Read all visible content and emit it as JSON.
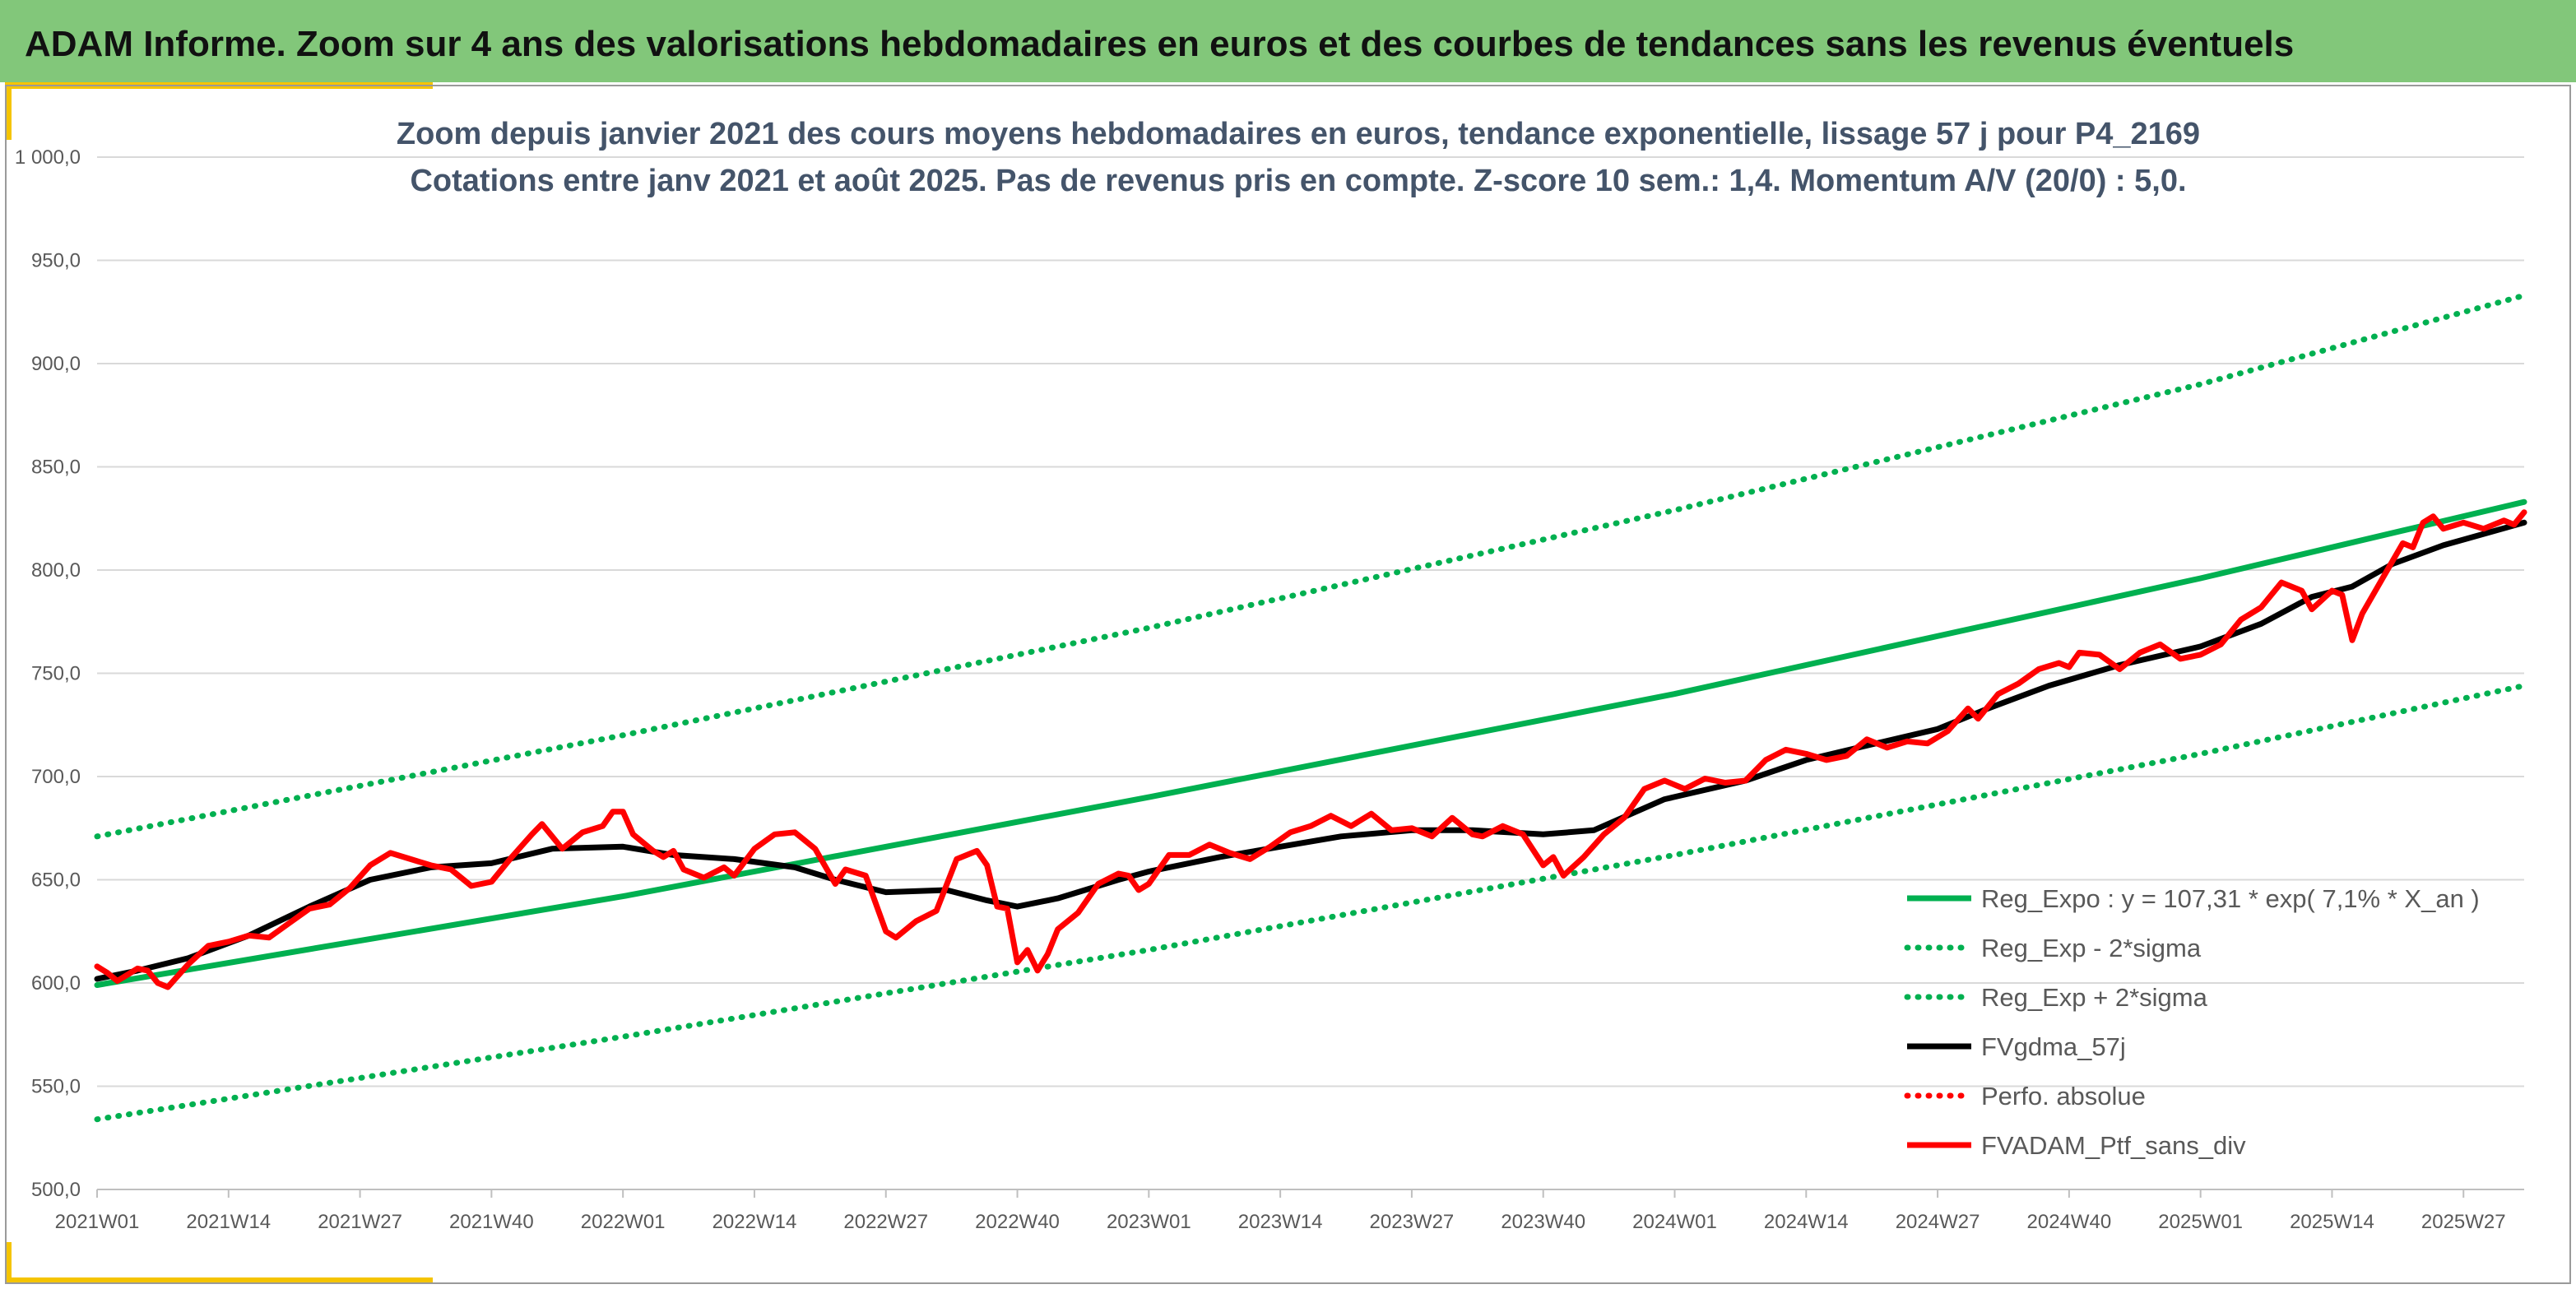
{
  "banner": {
    "title": "ADAM Informe. Zoom sur 4 ans des valorisations hebdomadaires en euros et des courbes de tendances sans les revenus éventuels"
  },
  "colors": {
    "banner_bg": "#82c77a",
    "accent": "#f5c400",
    "trend": "#00b050",
    "smooth": "#000000",
    "price": "#ff0000",
    "grid": "#d9d9d9"
  },
  "chart_data": {
    "type": "line",
    "title": "Zoom depuis janvier 2021 des cours moyens hebdomadaires en euros, tendance exponentielle, lissage 57 j pour P4_2169",
    "subtitle": "Cotations entre janv 2021 et août 2025. Pas de revenus pris en compte. Z-score 10 sem.: 1,4. Momentum A/V (20/0) : 5,0.",
    "xlabel": "",
    "ylabel": "",
    "ylim": [
      500,
      1000
    ],
    "yticks": [
      500,
      550,
      600,
      650,
      700,
      750,
      800,
      850,
      900,
      950,
      1000
    ],
    "ytick_labels": [
      "500,0",
      "550,0",
      "600,0",
      "650,0",
      "700,0",
      "750,0",
      "800,0",
      "850,0",
      "900,0",
      "950,0",
      "1 000,0"
    ],
    "x_range": [
      "2021W01",
      "2025W33"
    ],
    "xtick_labels": [
      "2021W01",
      "2021W14",
      "2021W27",
      "2021W40",
      "2022W01",
      "2022W14",
      "2022W27",
      "2022W40",
      "2023W01",
      "2023W14",
      "2023W27",
      "2023W40",
      "2024W01",
      "2024W14",
      "2024W27",
      "2024W40",
      "2025W01",
      "2025W14",
      "2025W27"
    ],
    "grid": true,
    "legend_position": "bottom-right",
    "series": [
      {
        "name": "Reg_Expo : y = 107,31 * exp( 7,1% *  X_an )",
        "style": "solid",
        "color": "#00b050",
        "points": [
          [
            "2021W01",
            599
          ],
          [
            "2022W01",
            642
          ],
          [
            "2023W01",
            690
          ],
          [
            "2024W01",
            740
          ],
          [
            "2025W01",
            796
          ],
          [
            "2025W33",
            833
          ]
        ]
      },
      {
        "name": "Reg_Exp - 2*sigma",
        "style": "dotted",
        "color": "#00b050",
        "points": [
          [
            "2021W01",
            534
          ],
          [
            "2022W01",
            574
          ],
          [
            "2023W01",
            616
          ],
          [
            "2024W01",
            662
          ],
          [
            "2025W01",
            711
          ],
          [
            "2025W33",
            744
          ]
        ]
      },
      {
        "name": "Reg_Exp + 2*sigma",
        "style": "dotted",
        "color": "#00b050",
        "points": [
          [
            "2021W01",
            671
          ],
          [
            "2022W01",
            720
          ],
          [
            "2023W01",
            772
          ],
          [
            "2024W01",
            829
          ],
          [
            "2025W01",
            890
          ],
          [
            "2025W33",
            933
          ]
        ]
      },
      {
        "name": "FVgdma_57j",
        "style": "solid",
        "color": "#000000",
        "points": [
          [
            "2021W01",
            602
          ],
          [
            "2021W05",
            606
          ],
          [
            "2021W10",
            612
          ],
          [
            "2021W16",
            623
          ],
          [
            "2021W22",
            637
          ],
          [
            "2021W28",
            650
          ],
          [
            "2021W34",
            656
          ],
          [
            "2021W40",
            658
          ],
          [
            "2021W46",
            665
          ],
          [
            "2022W01",
            666
          ],
          [
            "2022W06",
            662
          ],
          [
            "2022W12",
            660
          ],
          [
            "2022W18",
            656
          ],
          [
            "2022W22",
            650
          ],
          [
            "2022W27",
            644
          ],
          [
            "2022W33",
            645
          ],
          [
            "2022W37",
            640
          ],
          [
            "2022W40",
            637
          ],
          [
            "2022W44",
            641
          ],
          [
            "2022W50",
            650
          ],
          [
            "2023W01",
            654
          ],
          [
            "2023W08",
            661
          ],
          [
            "2023W14",
            666
          ],
          [
            "2023W20",
            671
          ],
          [
            "2023W27",
            674
          ],
          [
            "2023W33",
            674
          ],
          [
            "2023W40",
            672
          ],
          [
            "2023W45",
            674
          ],
          [
            "2023W52",
            689
          ],
          [
            "2024W08",
            698
          ],
          [
            "2024W14",
            708
          ],
          [
            "2024W20",
            715
          ],
          [
            "2024W27",
            723
          ],
          [
            "2024W32",
            733
          ],
          [
            "2024W38",
            744
          ],
          [
            "2024W45",
            754
          ],
          [
            "2025W01",
            763
          ],
          [
            "2025W07",
            774
          ],
          [
            "2025W12",
            787
          ],
          [
            "2025W16",
            792
          ],
          [
            "2025W20",
            803
          ],
          [
            "2025W25",
            812
          ],
          [
            "2025W33",
            823
          ]
        ]
      },
      {
        "name": "Perfo. absolue",
        "style": "dotted",
        "color": "#ff0000",
        "points": []
      },
      {
        "name": "FVADAM_Ptf_sans_div",
        "style": "solid",
        "color": "#ff0000",
        "points": [
          [
            "2021W01",
            608
          ],
          [
            "2021W02",
            605
          ],
          [
            "2021W03",
            601
          ],
          [
            "2021W04",
            604
          ],
          [
            "2021W05",
            607
          ],
          [
            "2021W06",
            606
          ],
          [
            "2021W07",
            600
          ],
          [
            "2021W08",
            598
          ],
          [
            "2021W10",
            609
          ],
          [
            "2021W12",
            618
          ],
          [
            "2021W14",
            620
          ],
          [
            "2021W16",
            623
          ],
          [
            "2021W18",
            622
          ],
          [
            "2021W20",
            629
          ],
          [
            "2021W22",
            636
          ],
          [
            "2021W24",
            638
          ],
          [
            "2021W26",
            646
          ],
          [
            "2021W28",
            657
          ],
          [
            "2021W30",
            663
          ],
          [
            "2021W32",
            660
          ],
          [
            "2021W34",
            657
          ],
          [
            "2021W36",
            655
          ],
          [
            "2021W38",
            647
          ],
          [
            "2021W40",
            649
          ],
          [
            "2021W42",
            661
          ],
          [
            "2021W44",
            672
          ],
          [
            "2021W45",
            677
          ],
          [
            "2021W47",
            665
          ],
          [
            "2021W49",
            673
          ],
          [
            "2021W51",
            676
          ],
          [
            "2021W52",
            683
          ],
          [
            "2022W01",
            683
          ],
          [
            "2022W02",
            672
          ],
          [
            "2022W04",
            664
          ],
          [
            "2022W05",
            661
          ],
          [
            "2022W06",
            664
          ],
          [
            "2022W07",
            655
          ],
          [
            "2022W09",
            651
          ],
          [
            "2022W11",
            656
          ],
          [
            "2022W12",
            652
          ],
          [
            "2022W14",
            665
          ],
          [
            "2022W16",
            672
          ],
          [
            "2022W18",
            673
          ],
          [
            "2022W20",
            665
          ],
          [
            "2022W22",
            648
          ],
          [
            "2022W23",
            655
          ],
          [
            "2022W25",
            652
          ],
          [
            "2022W27",
            625
          ],
          [
            "2022W28",
            622
          ],
          [
            "2022W30",
            630
          ],
          [
            "2022W32",
            635
          ],
          [
            "2022W34",
            660
          ],
          [
            "2022W36",
            664
          ],
          [
            "2022W37",
            657
          ],
          [
            "2022W38",
            637
          ],
          [
            "2022W39",
            636
          ],
          [
            "2022W40",
            610
          ],
          [
            "2022W41",
            616
          ],
          [
            "2022W42",
            606
          ],
          [
            "2022W43",
            614
          ],
          [
            "2022W44",
            626
          ],
          [
            "2022W46",
            634
          ],
          [
            "2022W48",
            648
          ],
          [
            "2022W50",
            653
          ],
          [
            "2022W51",
            652
          ],
          [
            "2022W52",
            645
          ],
          [
            "2023W01",
            648
          ],
          [
            "2023W03",
            662
          ],
          [
            "2023W05",
            662
          ],
          [
            "2023W07",
            667
          ],
          [
            "2023W09",
            663
          ],
          [
            "2023W11",
            660
          ],
          [
            "2023W13",
            666
          ],
          [
            "2023W15",
            673
          ],
          [
            "2023W17",
            676
          ],
          [
            "2023W19",
            681
          ],
          [
            "2023W21",
            676
          ],
          [
            "2023W23",
            682
          ],
          [
            "2023W25",
            674
          ],
          [
            "2023W27",
            675
          ],
          [
            "2023W29",
            671
          ],
          [
            "2023W31",
            680
          ],
          [
            "2023W33",
            672
          ],
          [
            "2023W34",
            671
          ],
          [
            "2023W36",
            676
          ],
          [
            "2023W38",
            672
          ],
          [
            "2023W40",
            657
          ],
          [
            "2023W41",
            661
          ],
          [
            "2023W42",
            652
          ],
          [
            "2023W44",
            661
          ],
          [
            "2023W46",
            672
          ],
          [
            "2023W48",
            680
          ],
          [
            "2023W50",
            694
          ],
          [
            "2023W52",
            698
          ],
          [
            "2024W02",
            694
          ],
          [
            "2024W04",
            699
          ],
          [
            "2024W06",
            697
          ],
          [
            "2024W08",
            698
          ],
          [
            "2024W10",
            708
          ],
          [
            "2024W12",
            713
          ],
          [
            "2024W14",
            711
          ],
          [
            "2024W16",
            708
          ],
          [
            "2024W18",
            710
          ],
          [
            "2024W20",
            718
          ],
          [
            "2024W22",
            714
          ],
          [
            "2024W24",
            717
          ],
          [
            "2024W26",
            716
          ],
          [
            "2024W28",
            722
          ],
          [
            "2024W30",
            733
          ],
          [
            "2024W31",
            728
          ],
          [
            "2024W33",
            740
          ],
          [
            "2024W35",
            745
          ],
          [
            "2024W37",
            752
          ],
          [
            "2024W39",
            755
          ],
          [
            "2024W40",
            753
          ],
          [
            "2024W41",
            760
          ],
          [
            "2024W43",
            759
          ],
          [
            "2024W45",
            752
          ],
          [
            "2024W47",
            760
          ],
          [
            "2024W49",
            764
          ],
          [
            "2024W51",
            757
          ],
          [
            "2025W01",
            759
          ],
          [
            "2025W03",
            764
          ],
          [
            "2025W05",
            776
          ],
          [
            "2025W07",
            782
          ],
          [
            "2025W09",
            794
          ],
          [
            "2025W11",
            790
          ],
          [
            "2025W12",
            781
          ],
          [
            "2025W14",
            790
          ],
          [
            "2025W15",
            788
          ],
          [
            "2025W16",
            766
          ],
          [
            "2025W17",
            779
          ],
          [
            "2025W19",
            796
          ],
          [
            "2025W21",
            813
          ],
          [
            "2025W22",
            811
          ],
          [
            "2025W23",
            823
          ],
          [
            "2025W24",
            826
          ],
          [
            "2025W25",
            820
          ],
          [
            "2025W27",
            823
          ],
          [
            "2025W29",
            820
          ],
          [
            "2025W31",
            824
          ],
          [
            "2025W32",
            822
          ],
          [
            "2025W33",
            828
          ]
        ]
      }
    ]
  }
}
